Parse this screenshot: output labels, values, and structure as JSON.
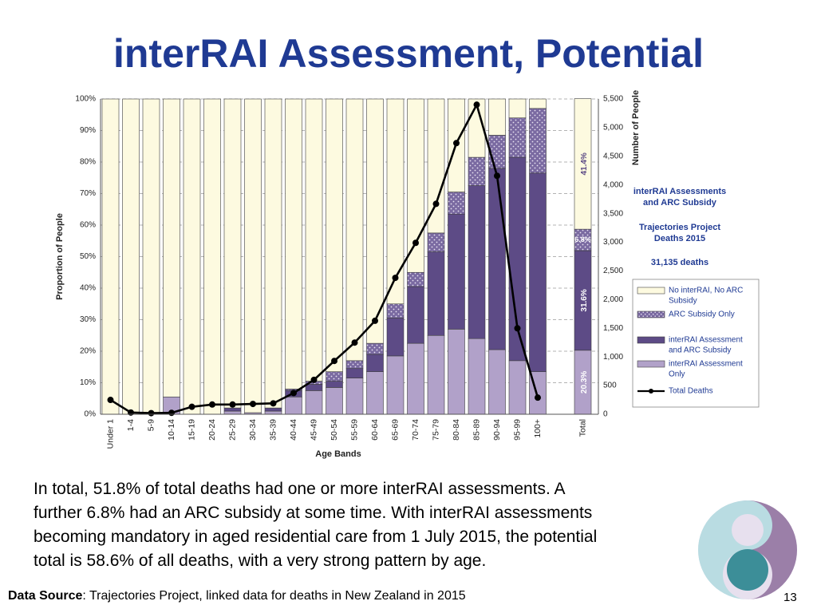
{
  "slide": {
    "title": "interRAI Assessment, Potential",
    "body_lines": [
      "In total, 51.8% of total deaths had one or more interRAI assessments. A",
      "further 6.8% had an ARC subsidy at some time. With interRAI assessments",
      "becoming mandatory in aged residential care from 1 July 2015, the potential",
      "total is 58.6% of all deaths, with a very strong pattern by age."
    ],
    "source_label": "Data Source",
    "source_text": ": Trajectories Project, linked data for deaths in New Zealand in 2015",
    "page_number": "13"
  },
  "chart_data": {
    "type": "bar",
    "stacked": true,
    "xlabel": "Age Bands",
    "ylabel": "Proportion of People",
    "y2label": "Number of People",
    "ylim": [
      0,
      100
    ],
    "y2lim": [
      0,
      5500
    ],
    "yticks": [
      "0%",
      "10%",
      "20%",
      "30%",
      "40%",
      "50%",
      "60%",
      "70%",
      "80%",
      "90%",
      "100%"
    ],
    "y2ticks": [
      "0",
      "500",
      "1,000",
      "1,500",
      "2,000",
      "2,500",
      "3,000",
      "3,500",
      "4,000",
      "4,500",
      "5,000",
      "5,500"
    ],
    "categories": [
      "Under 1",
      "1-4",
      "5-9",
      "10-14",
      "15-19",
      "20-24",
      "25-29",
      "30-34",
      "35-39",
      "40-44",
      "45-49",
      "50-54",
      "55-59",
      "60-64",
      "65-69",
      "70-74",
      "75-79",
      "80-84",
      "85-89",
      "90-94",
      "95-99",
      "100+"
    ],
    "series": [
      {
        "name": "interRAI Assessment Only",
        "color": "#b1a1c9",
        "values": [
          0,
          0,
          0,
          5.5,
          0,
          0,
          1,
          0.5,
          1,
          5.5,
          7.5,
          8.5,
          11.5,
          13.5,
          18.5,
          22.5,
          25,
          27,
          24,
          20.5,
          17,
          13.5
        ]
      },
      {
        "name": "interRAI Assessment and ARC Subsidy",
        "color": "#5d4b86",
        "values": [
          0,
          0,
          0,
          0,
          0,
          0,
          1,
          0,
          1,
          2,
          2,
          2,
          3,
          5.5,
          12,
          18,
          26.5,
          36.5,
          48.5,
          57.5,
          64.5,
          63
        ]
      },
      {
        "name": "ARC Subsidy Only",
        "color": "#7a6aa1",
        "values": [
          0,
          0,
          0,
          0,
          0,
          0,
          0,
          0,
          0,
          0.5,
          1,
          3,
          2.5,
          3.5,
          4.5,
          4.5,
          6,
          7,
          9,
          10.5,
          12.5,
          20.5
        ]
      },
      {
        "name": "No interRAI, No ARC Subsidy",
        "color": "#fdfae0",
        "values": [
          100,
          100,
          100,
          94.5,
          100,
          100,
          98,
          99.5,
          98,
          92,
          89.5,
          86.5,
          83,
          77.5,
          65,
          55,
          42.5,
          29.5,
          18.5,
          11.5,
          6,
          3
        ]
      }
    ],
    "total_bar": {
      "label": "Total",
      "values": [
        20.3,
        31.6,
        6.8,
        41.4
      ],
      "value_labels": [
        "20.3%",
        "31.6%",
        "6.8%",
        "41.4%"
      ]
    },
    "line": {
      "name": "Total Deaths",
      "values": [
        250,
        30,
        20,
        25,
        130,
        170,
        170,
        180,
        190,
        370,
        600,
        930,
        1250,
        1630,
        2380,
        2990,
        3670,
        4730,
        5400,
        4160,
        1500,
        290
      ]
    },
    "legend": [
      "No interRAI, No ARC Subsidy",
      "ARC Subsidy Only",
      "interRAI Assessment and ARC Subsidy",
      "interRAI Assessment Only",
      "Total Deaths"
    ],
    "annotation": {
      "title": "interRAI Assessments and ARC Subsidy",
      "subtitle": "Trajectories Project Deaths 2015",
      "deaths": "31,135 deaths"
    }
  }
}
